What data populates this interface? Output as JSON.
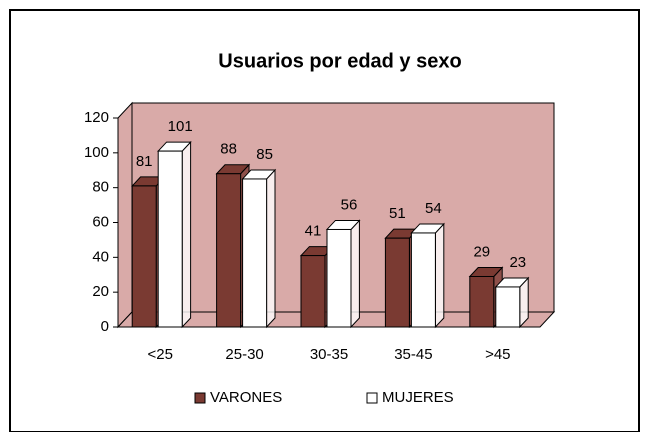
{
  "chart_data": {
    "type": "bar",
    "title": "Usuarios por edad y sexo",
    "categories": [
      "<25",
      "25-30",
      "30-35",
      "35-45",
      ">45"
    ],
    "series": [
      {
        "name": "VARONES",
        "color": "#7a3a32",
        "values": [
          81,
          88,
          41,
          51,
          29
        ]
      },
      {
        "name": "MUJERES",
        "color": "#ffffff",
        "values": [
          101,
          85,
          56,
          54,
          23
        ]
      }
    ],
    "ylim": [
      0,
      120
    ],
    "yticks": [
      0,
      20,
      40,
      60,
      80,
      100,
      120
    ],
    "wall_color": "#d9aaa8",
    "legend": "bottom"
  }
}
